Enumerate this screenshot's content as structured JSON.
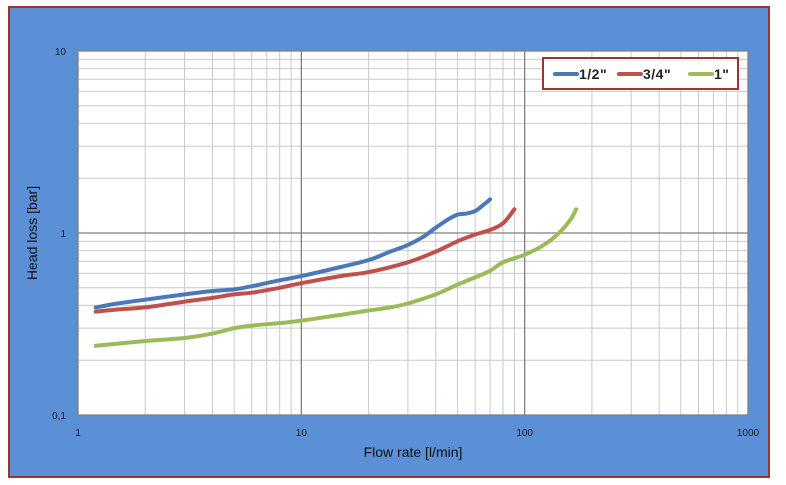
{
  "chart_data": {
    "type": "line",
    "title": "",
    "xlabel": "Flow rate [l/min]",
    "ylabel": "Head loss [bar]",
    "x_scale": "log",
    "y_scale": "log",
    "xlim": [
      1,
      1000
    ],
    "ylim": [
      0.1,
      10
    ],
    "x_ticks": [
      "1",
      "10",
      "100",
      "1000"
    ],
    "y_ticks": [
      "0,1",
      "1",
      "10"
    ],
    "grid": true,
    "legend_position": "top-right",
    "series": [
      {
        "name": "1/2\"",
        "color": "#4a78b8",
        "points": [
          [
            1.2,
            0.39
          ],
          [
            1.5,
            0.41
          ],
          [
            2,
            0.43
          ],
          [
            3,
            0.46
          ],
          [
            4,
            0.48
          ],
          [
            5,
            0.49
          ],
          [
            6,
            0.51
          ],
          [
            8,
            0.55
          ],
          [
            10,
            0.58
          ],
          [
            15,
            0.65
          ],
          [
            20,
            0.71
          ],
          [
            25,
            0.79
          ],
          [
            30,
            0.86
          ],
          [
            35,
            0.95
          ],
          [
            40,
            1.07
          ],
          [
            45,
            1.18
          ],
          [
            50,
            1.26
          ],
          [
            55,
            1.28
          ],
          [
            60,
            1.32
          ],
          [
            65,
            1.42
          ],
          [
            70,
            1.53
          ]
        ]
      },
      {
        "name": "3/4\"",
        "color": "#c0504d",
        "points": [
          [
            1.2,
            0.37
          ],
          [
            1.5,
            0.38
          ],
          [
            2,
            0.39
          ],
          [
            3,
            0.42
          ],
          [
            4,
            0.44
          ],
          [
            5,
            0.46
          ],
          [
            6,
            0.47
          ],
          [
            8,
            0.5
          ],
          [
            10,
            0.53
          ],
          [
            15,
            0.58
          ],
          [
            20,
            0.61
          ],
          [
            30,
            0.69
          ],
          [
            40,
            0.79
          ],
          [
            50,
            0.9
          ],
          [
            60,
            0.98
          ],
          [
            70,
            1.04
          ],
          [
            80,
            1.13
          ],
          [
            90,
            1.35
          ]
        ]
      },
      {
        "name": "1\"",
        "color": "#9bbb59",
        "points": [
          [
            1.2,
            0.24
          ],
          [
            2,
            0.255
          ],
          [
            3,
            0.265
          ],
          [
            4,
            0.28
          ],
          [
            5,
            0.3
          ],
          [
            6,
            0.31
          ],
          [
            8,
            0.32
          ],
          [
            10,
            0.33
          ],
          [
            15,
            0.355
          ],
          [
            20,
            0.375
          ],
          [
            25,
            0.39
          ],
          [
            30,
            0.41
          ],
          [
            40,
            0.46
          ],
          [
            50,
            0.52
          ],
          [
            60,
            0.57
          ],
          [
            70,
            0.62
          ],
          [
            80,
            0.69
          ],
          [
            100,
            0.76
          ],
          [
            120,
            0.85
          ],
          [
            140,
            0.98
          ],
          [
            160,
            1.18
          ],
          [
            170,
            1.35
          ]
        ]
      }
    ]
  }
}
